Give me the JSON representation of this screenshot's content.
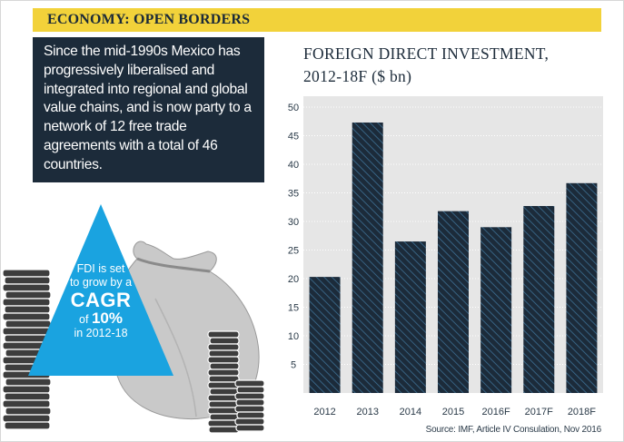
{
  "header": {
    "title": "ECONOMY: OPEN BORDERS"
  },
  "intro": {
    "text": "Since the mid-1990s Mexico has progressively liberalised and integrated into regional and global value chains, and is now party to a network of 12 free trade agreements with a total of 46 countries."
  },
  "callout": {
    "line1": "FDI is set",
    "line2": "to grow by a",
    "line3": "CAGR",
    "line4_prefix": "of",
    "line4_value": "10%",
    "line5": "in 2012-18"
  },
  "colors": {
    "navy": "#1c2b3a",
    "yellow": "#f2d23a",
    "blue": "#1aa3e0",
    "grey": "#c9c9c9"
  },
  "chart_data": {
    "type": "bar",
    "title_line1": "FOREIGN DIRECT INVESTMENT,",
    "title_line2": "2012-18F ($ bn)",
    "categories": [
      "2012",
      "2013",
      "2014",
      "2015",
      "2016F",
      "2017F",
      "2018F"
    ],
    "values": [
      20.3,
      47.3,
      26.5,
      31.8,
      29,
      32.7,
      36.7
    ],
    "yticks": [
      5,
      10,
      15,
      20,
      25,
      30,
      35,
      40,
      45,
      50
    ],
    "ylim": [
      0,
      50
    ],
    "xlabel": "",
    "ylabel": "",
    "grid": true
  },
  "source": "Source: IMF, Article IV Consulation, Nov 2016"
}
